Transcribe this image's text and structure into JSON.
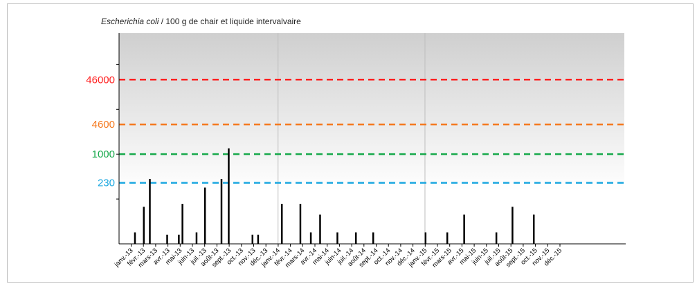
{
  "chart_data": {
    "type": "bar",
    "title_italic": "Escherichia coli",
    "title_rest": " / 100 g de chair et liquide intervalvaire",
    "xlabel": "",
    "ylabel": "",
    "categories": [
      "janv.-13",
      "févr.-13",
      "mars-13",
      "avr.-13",
      "mai-13",
      "juin-13",
      "juil.-13",
      "août-13",
      "sept.-13",
      "oct.-13",
      "nov.-13",
      "déc.-13",
      "janv.-14",
      "févr.-14",
      "mars-14",
      "avr.-14",
      "mai-14",
      "juin-14",
      "juil.-14",
      "août-14",
      "sept.-14",
      "oct.-14",
      "nov.-14",
      "déc.-14",
      "janv.-15",
      "févr.-15",
      "mars-15",
      "avr.-15",
      "mai-15",
      "juin-15",
      "juil.-15",
      "août-15",
      "sept.-15",
      "oct.-15",
      "nov.-15",
      "déc.-15"
    ],
    "bars": [
      {
        "date": "2013-01-10",
        "value": 18
      },
      {
        "date": "2013-02-01",
        "value": 67
      },
      {
        "date": "2013-02-16",
        "value": 280
      },
      {
        "date": "2013-03-31",
        "value": 16
      },
      {
        "date": "2013-04-29",
        "value": 16
      },
      {
        "date": "2013-05-08",
        "value": 78
      },
      {
        "date": "2013-06-12",
        "value": 18
      },
      {
        "date": "2013-07-03",
        "value": 180
      },
      {
        "date": "2013-08-13",
        "value": 280
      },
      {
        "date": "2013-08-31",
        "value": 1350
      },
      {
        "date": "2013-10-29",
        "value": 16
      },
      {
        "date": "2013-11-12",
        "value": 16
      },
      {
        "date": "2014-01-10",
        "value": 78
      },
      {
        "date": "2014-02-25",
        "value": 78
      },
      {
        "date": "2014-03-23",
        "value": 18
      },
      {
        "date": "2014-04-15",
        "value": 45
      },
      {
        "date": "2014-05-28",
        "value": 18
      },
      {
        "date": "2014-07-13",
        "value": 18
      },
      {
        "date": "2014-08-25",
        "value": 18
      },
      {
        "date": "2015-01-02",
        "value": 18
      },
      {
        "date": "2015-02-25",
        "value": 18
      },
      {
        "date": "2015-04-08",
        "value": 45
      },
      {
        "date": "2015-06-27",
        "value": 18
      },
      {
        "date": "2015-08-06",
        "value": 67
      },
      {
        "date": "2015-09-28",
        "value": 45
      }
    ],
    "thresholds": [
      {
        "value": 46000,
        "label": "46000",
        "color": "#ff1f1f"
      },
      {
        "value": 4600,
        "label": "4600",
        "color": "#f5791e"
      },
      {
        "value": 1000,
        "label": "1000",
        "color": "#16a84a"
      },
      {
        "value": 230,
        "label": "230",
        "color": "#1ba7e0"
      }
    ],
    "ylim": [
      10,
      500000
    ],
    "yscale": "log",
    "year_separators": [
      "2014-01-01",
      "2015-01-01"
    ],
    "grid": false,
    "bar_color": "#000000",
    "background": "grey-to-white gradient"
  }
}
